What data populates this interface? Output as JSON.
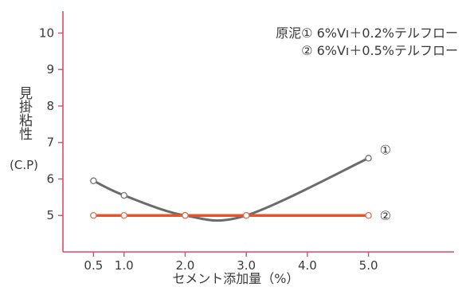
{
  "chart_data": {
    "type": "line",
    "xlabel": "セメント添加量（%）",
    "ylabel": "見掛粘性",
    "ylabel_unit": "(C.P)",
    "xlim": [
      0,
      6.4
    ],
    "ylim": [
      4,
      10.6
    ],
    "x_ticks": [
      "0.5",
      "1.0",
      "2.0",
      "3.0",
      "4.0",
      "5.0"
    ],
    "y_ticks": [
      "5",
      "6",
      "7",
      "8",
      "9",
      "10"
    ],
    "legend": {
      "line1": "原泥① 6%Vı＋0.2%テルフロー",
      "line2": "② 6%Vı＋0.5%テルフロー"
    },
    "series": [
      {
        "label": "①",
        "color": "#6b6b6b",
        "x": [
          0.5,
          1.0,
          2.0,
          3.0,
          5.0
        ],
        "y": [
          5.95,
          5.55,
          5.0,
          5.0,
          6.57
        ]
      },
      {
        "label": "②",
        "color": "#e8542a",
        "x": [
          0.5,
          1.0,
          2.0,
          3.0,
          5.0
        ],
        "y": [
          5.0,
          5.0,
          5.0,
          5.0,
          5.0
        ]
      }
    ],
    "axis_color": "#d9496c"
  }
}
